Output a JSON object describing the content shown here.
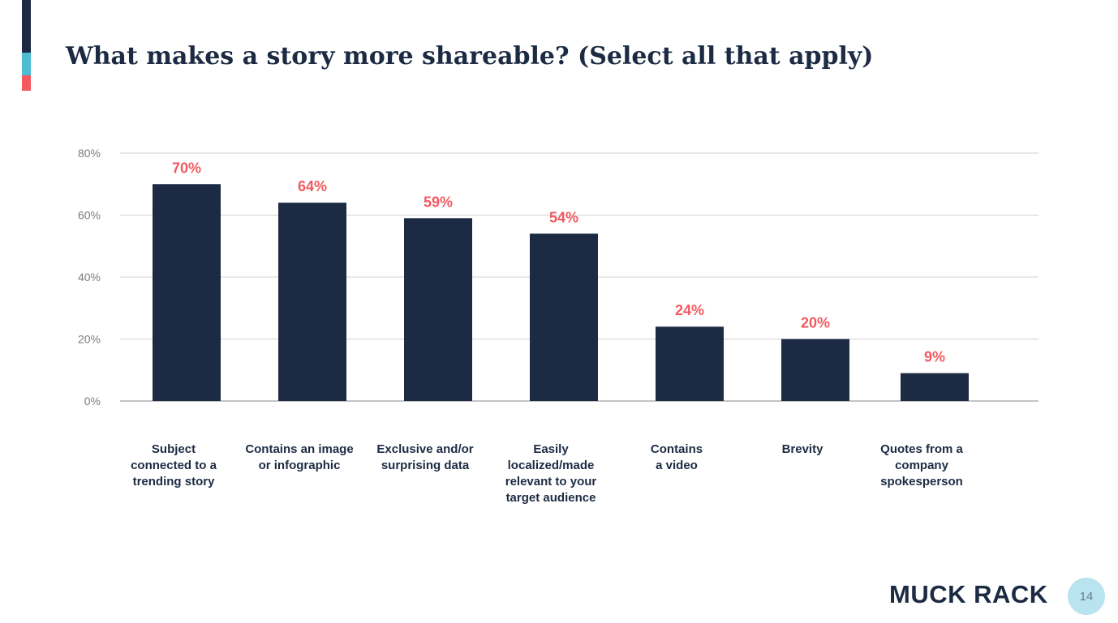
{
  "colors": {
    "navy": "#1c2b43",
    "teal": "#4dbdd4",
    "coral": "#f25a60",
    "grid": "#d2d2d2",
    "tick_text": "#7b7b7b",
    "page_circle": "#b9e3ef"
  },
  "slide": {
    "title": "What makes a story more shareable? (Select all that apply)",
    "logo_text": "MUCK RACK",
    "page_number": "14"
  },
  "chart_data": {
    "type": "bar",
    "title": "What makes a story more shareable? (Select all that apply)",
    "xlabel": "",
    "ylabel": "",
    "ylim": [
      0,
      80
    ],
    "yticks": [
      0,
      20,
      40,
      60,
      80
    ],
    "ytick_labels": [
      "0%",
      "20%",
      "40%",
      "60%",
      "80%"
    ],
    "grid": true,
    "legend": "none",
    "categories": [
      "Subject connected to a trending story",
      "Contains an image or infographic",
      "Exclusive and/or surprising data",
      "Easily localized/made relevant to your target audience",
      "Contains a video",
      "Brevity",
      "Quotes from a company spokesperson"
    ],
    "category_lines": [
      [
        "Subject",
        "connected to a",
        "trending story"
      ],
      [
        "Contains an image",
        "or infographic"
      ],
      [
        "Exclusive and/or",
        "surprising data"
      ],
      [
        "Easily",
        "localized/made",
        "relevant to your",
        "target audience"
      ],
      [
        "Contains",
        "a video"
      ],
      [
        "Brevity"
      ],
      [
        "Quotes from a",
        "company",
        "spokesperson"
      ]
    ],
    "values": [
      70,
      64,
      59,
      54,
      24,
      20,
      9
    ],
    "value_labels": [
      "70%",
      "64%",
      "59%",
      "54%",
      "24%",
      "20%",
      "9%"
    ]
  }
}
